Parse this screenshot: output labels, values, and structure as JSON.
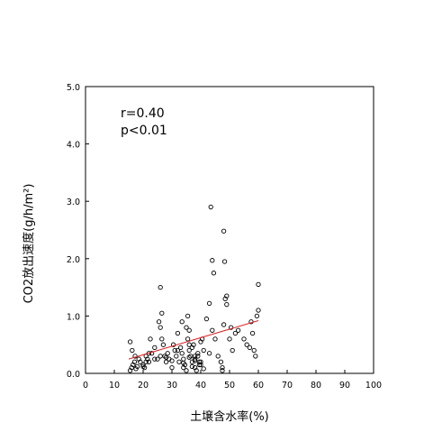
{
  "chart_data": {
    "type": "scatter",
    "title": "",
    "xlabel": "土壌含水率(%)",
    "ylabel": "CO2放出速度(g/h/m²)",
    "xlim": [
      0,
      100
    ],
    "ylim": [
      0,
      5
    ],
    "xticks": [
      "0",
      "10",
      "20",
      "30",
      "40",
      "50",
      "60",
      "70",
      "80",
      "90",
      "100"
    ],
    "yticks": [
      "0.0",
      "1.0",
      "2.0",
      "3.0",
      "4.0",
      "5.0"
    ],
    "grid": false,
    "annotations": [
      "r=0.40",
      "p<0.01"
    ],
    "regression_color": "#e02020",
    "regression_line": {
      "x": [
        15,
        60
      ],
      "y": [
        0.25,
        0.92
      ]
    },
    "series": [
      {
        "marker": "circle-open",
        "x": [
          15.5,
          16,
          16.5,
          17,
          17.5,
          18,
          15.5,
          16.2,
          17.2,
          18.5,
          19,
          20,
          20.5,
          21,
          21.5,
          22,
          22.5,
          23,
          24,
          25,
          25.5,
          26,
          26.5,
          27,
          27.5,
          28,
          28.5,
          29,
          30,
          30.5,
          31,
          31.5,
          32,
          32.5,
          33,
          33.5,
          34,
          34.5,
          35,
          35.5,
          36,
          36.5,
          37,
          37.5,
          38,
          38.5,
          39,
          39.5,
          40,
          40.5,
          41,
          42,
          43,
          44,
          45,
          46,
          47,
          47.5,
          48,
          48.5,
          49,
          50,
          50.5,
          51,
          52,
          53,
          55,
          56,
          57,
          57.5,
          58,
          58.5,
          59,
          59.5,
          60,
          60,
          26,
          26.5,
          33.5,
          35.5,
          36,
          43.5,
          44,
          44.5,
          43,
          47.5,
          48,
          48.3,
          49,
          20,
          21,
          22,
          24,
          26,
          28,
          30,
          32,
          34,
          36,
          38,
          40,
          34,
          35,
          37,
          38,
          39,
          39.5,
          40,
          41,
          38,
          37,
          36
        ],
        "y": [
          0.05,
          0.1,
          0.15,
          0.2,
          0.08,
          0.12,
          0.55,
          0.4,
          0.3,
          0.25,
          0.2,
          0.15,
          0.1,
          0.3,
          0.25,
          0.2,
          0.6,
          0.35,
          0.45,
          0.25,
          0.9,
          0.8,
          0.6,
          0.5,
          0.3,
          0.2,
          0.35,
          0.25,
          0.1,
          0.5,
          0.4,
          0.3,
          0.7,
          0.2,
          0.45,
          0.35,
          0.25,
          0.15,
          0.8,
          0.6,
          0.4,
          0.3,
          0.2,
          0.5,
          0.1,
          0.05,
          0.3,
          0.2,
          0.15,
          0.6,
          0.4,
          0.95,
          0.35,
          0.75,
          0.6,
          0.3,
          0.2,
          0.1,
          0.85,
          1.3,
          1.2,
          0.6,
          0.8,
          0.4,
          0.7,
          0.75,
          0.6,
          0.5,
          0.45,
          0.9,
          0.7,
          0.4,
          0.3,
          1.0,
          1.1,
          1.55,
          1.5,
          1.05,
          0.9,
          1.0,
          0.75,
          2.9,
          1.97,
          1.75,
          1.22,
          0.05,
          2.48,
          1.95,
          1.35,
          0.12,
          0.2,
          0.35,
          0.25,
          0.3,
          0.28,
          0.22,
          0.4,
          0.18,
          0.5,
          0.3,
          0.55,
          0.1,
          0.05,
          0.45,
          0.25,
          0.35,
          0.15,
          0.2,
          0.08,
          0.22,
          0.12,
          0.28
        ]
      }
    ]
  }
}
